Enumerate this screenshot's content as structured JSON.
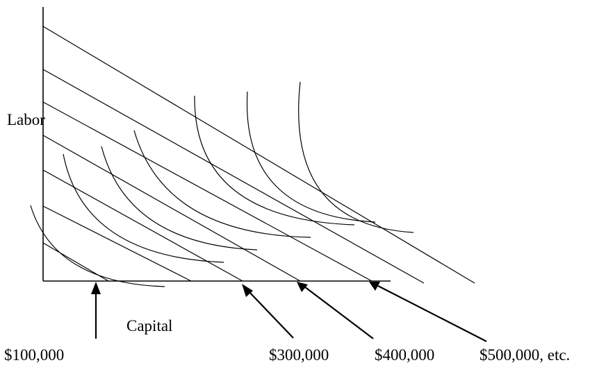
{
  "diagram": {
    "y_axis_label": "Labor",
    "x_axis_label": "Capital",
    "cost_labels": [
      "$100,000",
      "$300,000",
      "$400,000",
      "$500,000, etc."
    ]
  }
}
